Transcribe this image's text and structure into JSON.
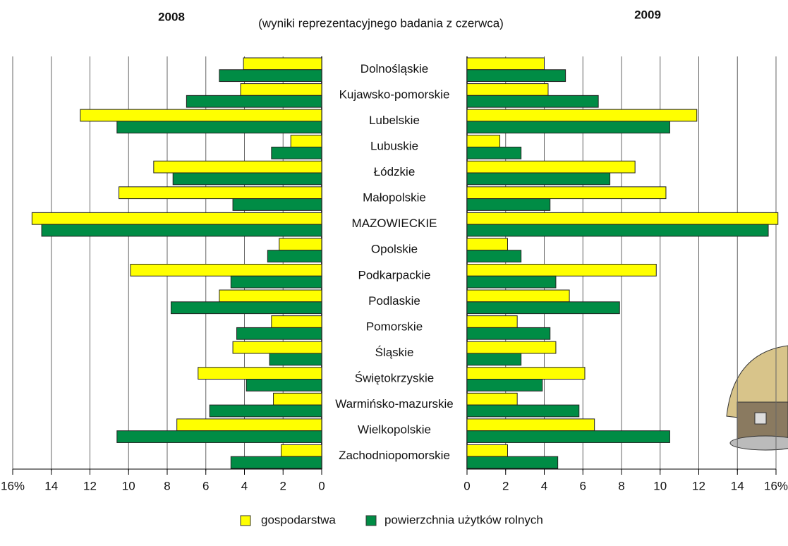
{
  "subtitle": "(wyniki reprezentacyjnego badania z czerwca)",
  "chart_data": [
    {
      "type": "bar",
      "orientation": "horizontal",
      "title": "2008",
      "x_reversed": true,
      "grid": true,
      "categories": [
        "Dolnośląskie",
        "Kujawsko-pomorskie",
        "Lubelskie",
        "Lubuskie",
        "Łódzkie",
        "Małopolskie",
        "MAZOWIECKIE",
        "Opolskie",
        "Podkarpackie",
        "Podlaskie",
        "Pomorskie",
        "Śląskie",
        "Świętokrzyskie",
        "Warmińsko-mazurskie",
        "Wielkopolskie",
        "Zachodniopomorskie"
      ],
      "xlim": [
        0,
        16
      ],
      "xticks": [
        0,
        2,
        4,
        6,
        8,
        10,
        12,
        14,
        {
          "value": 16,
          "label": "16%"
        }
      ],
      "series": [
        {
          "name": "gospodarstwa",
          "color": "#ffff00",
          "values": [
            4.05,
            4.2,
            12.5,
            1.6,
            8.7,
            10.5,
            15.0,
            2.2,
            9.9,
            5.3,
            2.6,
            4.6,
            6.4,
            2.5,
            7.5,
            2.1
          ]
        },
        {
          "name": "powierzchnia użytków rolnych",
          "color": "#008c45",
          "values": [
            5.3,
            7.0,
            10.6,
            2.6,
            7.7,
            4.6,
            14.5,
            2.8,
            4.7,
            7.8,
            4.4,
            2.7,
            3.9,
            5.8,
            10.6,
            4.7
          ]
        }
      ]
    },
    {
      "type": "bar",
      "orientation": "horizontal",
      "title": "2009",
      "x_reversed": false,
      "grid": true,
      "xlim": [
        0,
        16
      ],
      "xticks": [
        0,
        2,
        4,
        6,
        8,
        10,
        12,
        14,
        {
          "value": 16,
          "label": "16%"
        }
      ],
      "series": [
        {
          "color": "#ffff00",
          "values": [
            4.0,
            4.2,
            11.9,
            1.7,
            8.7,
            10.3,
            16.1,
            2.1,
            9.8,
            5.3,
            2.6,
            4.6,
            6.1,
            2.6,
            6.6,
            2.1
          ]
        },
        {
          "color": "#008c45",
          "values": [
            5.1,
            6.8,
            10.5,
            2.8,
            7.4,
            4.3,
            15.6,
            2.8,
            4.6,
            7.9,
            4.3,
            2.8,
            3.9,
            5.8,
            10.5,
            4.7
          ]
        }
      ]
    }
  ]
}
